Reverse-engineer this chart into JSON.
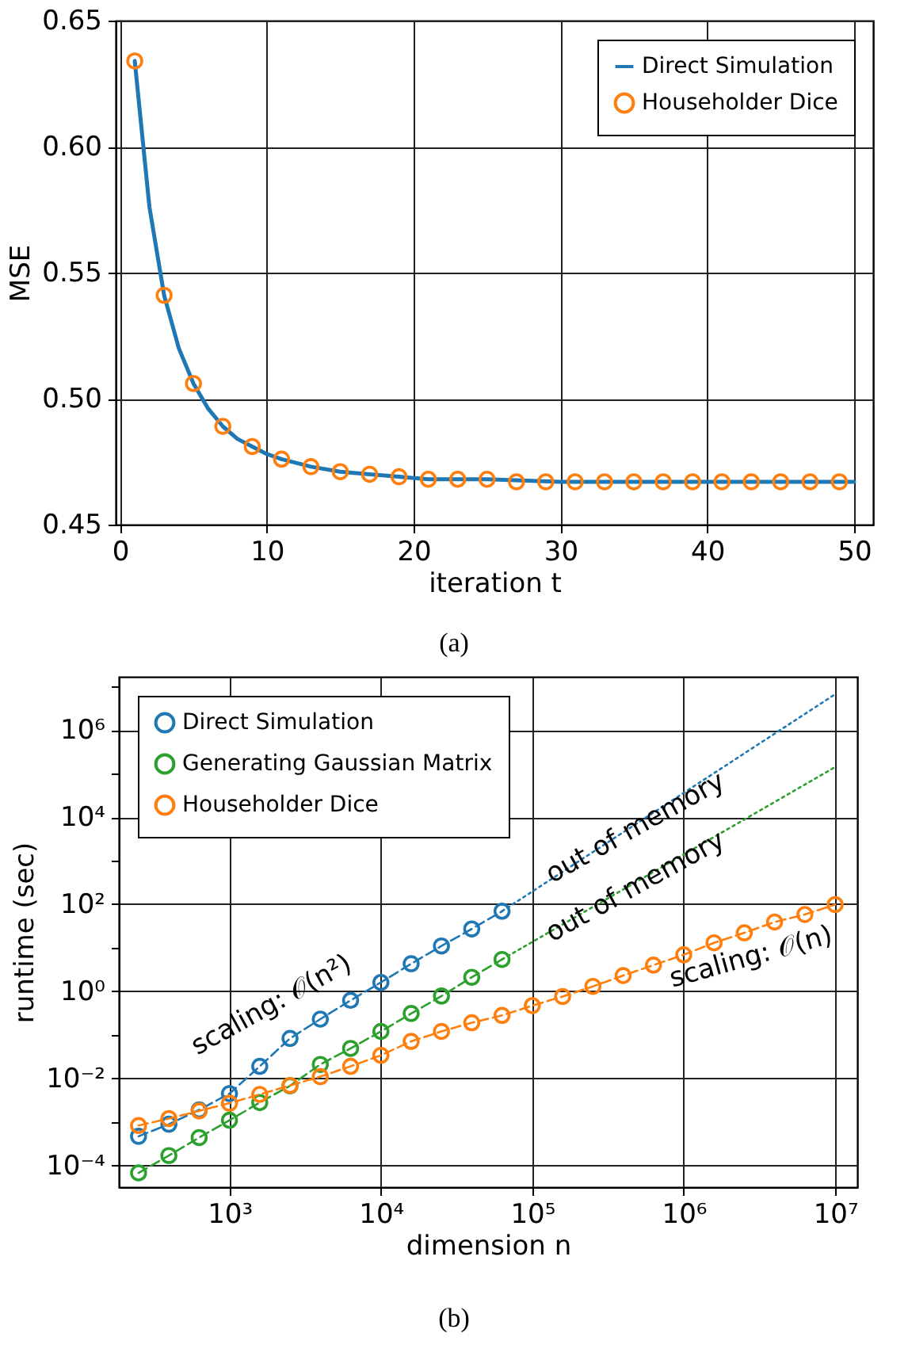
{
  "chart_data": [
    {
      "type": "line",
      "xlabel": "iteration t",
      "ylabel": "MSE",
      "xlim": [
        -0.3,
        51.3
      ],
      "ylim": [
        0.45,
        0.65
      ],
      "xticks": [
        0,
        10,
        20,
        30,
        40,
        50
      ],
      "yticks": [
        0.45,
        {
          "value": 0.5,
          "label": "0.50"
        },
        0.55,
        {
          "value": 0.6,
          "label": "0.60"
        },
        0.65
      ],
      "grid": true,
      "legend": "top right",
      "annotations": [
        "(a)"
      ],
      "series": [
        {
          "name": "Direct Simulation",
          "color": "#1f77b4",
          "line_style": "solid",
          "x": [
            1,
            2,
            3,
            4,
            5,
            6,
            7,
            8,
            9,
            10,
            11,
            13,
            15,
            17,
            19,
            21,
            25,
            30,
            35,
            40,
            45,
            50
          ],
          "values": [
            0.634,
            0.576,
            0.541,
            0.52,
            0.506,
            0.496,
            0.489,
            0.484,
            0.481,
            0.478,
            0.476,
            0.473,
            0.471,
            0.47,
            0.469,
            0.468,
            0.468,
            0.467,
            0.467,
            0.467,
            0.467,
            0.467
          ]
        },
        {
          "name": "Householder Dice",
          "type": "scatter",
          "color": "#ff7f0e",
          "marker": "circle",
          "x": [
            1,
            3,
            5,
            7,
            9,
            11,
            13,
            15,
            17,
            19,
            21,
            23,
            25,
            27,
            29,
            31,
            33,
            35,
            37,
            39,
            41,
            43,
            45,
            47,
            49
          ],
          "values": [
            0.634,
            0.541,
            0.506,
            0.489,
            0.481,
            0.476,
            0.473,
            0.471,
            0.47,
            0.469,
            0.468,
            0.468,
            0.468,
            0.467,
            0.467,
            0.467,
            0.467,
            0.467,
            0.467,
            0.467,
            0.467,
            0.467,
            0.467,
            0.467,
            0.467
          ]
        }
      ]
    },
    {
      "type": "line",
      "xlabel": "dimension n",
      "ylabel": "runtime (sec)",
      "log": "xy",
      "xlim": [
        186,
        14000000
      ],
      "ylim": [
        3.2e-05,
        16600000
      ],
      "xticks": [
        {
          "value": 1000,
          "label": "10³"
        },
        {
          "value": 10000,
          "label": "10⁴"
        },
        {
          "value": 100000,
          "label": "10⁵"
        },
        {
          "value": 1000000,
          "label": "10⁶"
        },
        {
          "value": 10000000,
          "label": "10⁷"
        }
      ],
      "yticks": [
        {
          "value": 0.0001,
          "label": "10⁻⁴"
        },
        {
          "value": 0.001,
          "label": null
        },
        {
          "value": 0.01,
          "label": "10⁻²"
        },
        {
          "value": 0.1,
          "label": null
        },
        {
          "value": 1,
          "label": "10⁰"
        },
        {
          "value": 10,
          "label": null
        },
        {
          "value": 100,
          "label": "10²"
        },
        {
          "value": 1000,
          "label": null
        },
        {
          "value": 10000,
          "label": "10⁴"
        },
        {
          "value": 100000,
          "label": null
        },
        {
          "value": 1000000,
          "label": "10⁶"
        },
        {
          "value": 10000000,
          "label": null
        }
      ],
      "grid": true,
      "legend": "top left",
      "marker": "circle",
      "annotations": [
        {
          "text": "scaling: 𝒪(n²)",
          "x": 2512,
          "y": 0.083
        },
        {
          "text": "out of memory",
          "x": 480000,
          "y": 5600
        },
        {
          "text": "out of memory",
          "x": 480000,
          "y": 250
        },
        {
          "text": "scaling: 𝒪(n)",
          "x": 2511886,
          "y": 22
        },
        "(b)"
      ],
      "series": [
        {
          "name": "Direct Simulation",
          "color": "#1f77b4",
          "line_style": "dashed",
          "x": [
            251,
            398,
            631,
            1000,
            1585,
            2512,
            3981,
            6310,
            10000,
            15849,
            25119,
            39811,
            63096
          ],
          "values": [
            0.00047,
            0.00089,
            0.0019,
            0.0045,
            0.019,
            0.083,
            0.23,
            0.62,
            1.6,
            4.3,
            11,
            27,
            69
          ]
        },
        {
          "name": "Generating Gaussian Matrix",
          "color": "#2ca02c",
          "line_style": "dashed",
          "x": [
            251,
            398,
            631,
            1000,
            1585,
            2512,
            3981,
            6310,
            10000,
            15849,
            25119,
            39811,
            63096
          ],
          "values": [
            6.8e-05,
            0.00017,
            0.00044,
            0.0011,
            0.0028,
            0.0068,
            0.021,
            0.049,
            0.12,
            0.31,
            0.78,
            2.1,
            5.4
          ]
        },
        {
          "name": "Householder Dice",
          "color": "#ff7f0e",
          "line_style": "dashed",
          "x": [
            251,
            398,
            631,
            1000,
            1585,
            2512,
            3981,
            6310,
            10000,
            15849,
            25119,
            39811,
            63096,
            100000,
            158489,
            251189,
            398107,
            630957,
            1000000,
            1584893,
            2511886,
            3981072,
            6309573,
            10000000
          ],
          "values": [
            0.00083,
            0.0012,
            0.0018,
            0.0027,
            0.0043,
            0.0069,
            0.011,
            0.019,
            0.034,
            0.071,
            0.12,
            0.19,
            0.28,
            0.47,
            0.76,
            1.3,
            2.3,
            4.0,
            6.9,
            13,
            22,
            39,
            58,
            98
          ]
        },
        {
          "type": "line",
          "color": "#1f77b4",
          "line_style": "dotted",
          "marker": "none",
          "x": [
            63096,
            10000000
          ],
          "values": [
            69,
            6600000
          ]
        },
        {
          "type": "line",
          "color": "#2ca02c",
          "line_style": "dotted",
          "marker": "none",
          "x": [
            63096,
            10000000
          ],
          "values": [
            5.4,
            140000
          ]
        }
      ]
    }
  ]
}
